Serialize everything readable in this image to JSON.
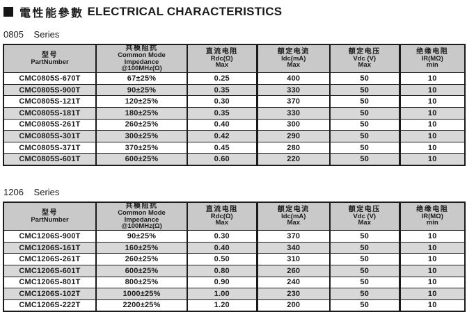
{
  "title": {
    "zh": "電性能參數",
    "en": "ELECTRICAL CHARACTERISTICS"
  },
  "columns": [
    {
      "lines": [
        "型号",
        "PartNumber"
      ]
    },
    {
      "lines": [
        "共模阻抗",
        "Common Mode",
        "Impedance",
        "@100MHz(Ω)"
      ]
    },
    {
      "lines": [
        "直流电阻",
        "Rdc(Ω)",
        "Max"
      ]
    },
    {
      "lines": [
        "额定电流",
        "Idc(mA)",
        "Max"
      ]
    },
    {
      "lines": [
        "额定电压",
        "Vdc (V)",
        "Max"
      ]
    },
    {
      "lines": [
        "绝缘电阻",
        "IR(MΩ)",
        "min"
      ]
    }
  ],
  "sections": [
    {
      "series_code": "0805",
      "series_word": "Series",
      "rows": [
        [
          "CMC0805S-670T",
          "67±25%",
          "0.25",
          "400",
          "50",
          "10"
        ],
        [
          "CMC0805S-900T",
          "90±25%",
          "0.35",
          "330",
          "50",
          "10"
        ],
        [
          "CMC0805S-121T",
          "120±25%",
          "0.30",
          "370",
          "50",
          "10"
        ],
        [
          "CMC0805S-181T",
          "180±25%",
          "0.35",
          "330",
          "50",
          "10"
        ],
        [
          "CMC0805S-261T",
          "260±25%",
          "0.40",
          "300",
          "50",
          "10"
        ],
        [
          "CMC0805S-301T",
          "300±25%",
          "0.42",
          "290",
          "50",
          "10"
        ],
        [
          "CMC0805S-371T",
          "370±25%",
          "0.45",
          "280",
          "50",
          "10"
        ],
        [
          "CMC0805S-601T",
          "600±25%",
          "0.60",
          "220",
          "50",
          "10"
        ]
      ]
    },
    {
      "series_code": "1206",
      "series_word": "Series",
      "rows": [
        [
          "CMC1206S-900T",
          "90±25%",
          "0.30",
          "370",
          "50",
          "10"
        ],
        [
          "CMC1206S-161T",
          "160±25%",
          "0.40",
          "340",
          "50",
          "10"
        ],
        [
          "CMC1206S-261T",
          "260±25%",
          "0.50",
          "310",
          "50",
          "10"
        ],
        [
          "CMC1206S-601T",
          "600±25%",
          "0.80",
          "260",
          "50",
          "10"
        ],
        [
          "CMC1206S-801T",
          "800±25%",
          "0.90",
          "240",
          "50",
          "10"
        ],
        [
          "CMC1206S-102T",
          "1000±25%",
          "1.00",
          "230",
          "50",
          "10"
        ],
        [
          "CMC1206S-222T",
          "2200±25%",
          "1.20",
          "200",
          "50",
          "10"
        ]
      ]
    }
  ],
  "colors": {
    "header_bg": "#c9c9c9",
    "row_alt_bg": "#d8d8d8",
    "border": "#1b1b1b",
    "text": "#1b1b1b"
  }
}
